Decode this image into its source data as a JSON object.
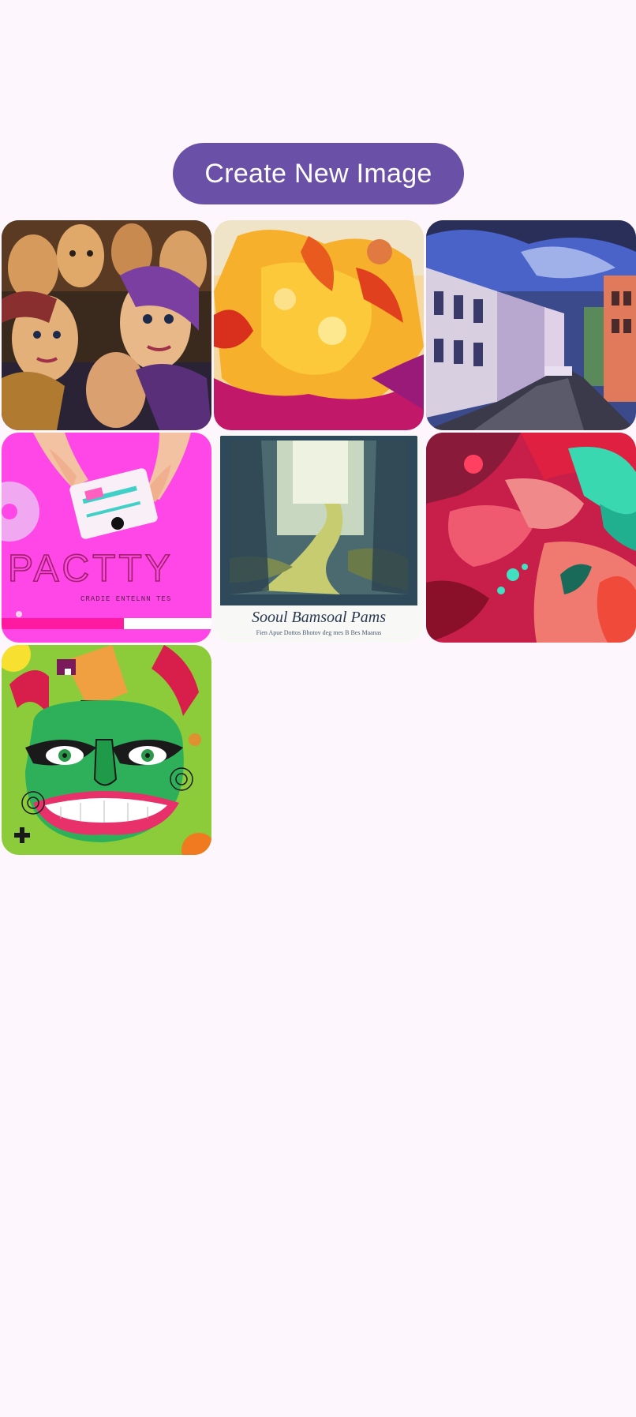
{
  "actions": {
    "create_label": "Create New Image"
  },
  "gallery": {
    "images": [
      {
        "subject": "crowd-of-women-portrait-painting",
        "text": ""
      },
      {
        "subject": "orange-abstract-watercolor",
        "text": ""
      },
      {
        "subject": "city-street-painting",
        "text": ""
      },
      {
        "subject": "party-cassette-poster",
        "text": "PACTTY",
        "subtext": "CRADIE ENTELNN TES"
      },
      {
        "subject": "forest-path-watercolor",
        "text": "Sooul Bamsoal Pams",
        "subtext": "Fien Apue Dottos Bhotov deg mes B Bes Maanas"
      },
      {
        "subject": "red-teal-abstract-splash",
        "text": ""
      },
      {
        "subject": "green-face-cartoon-illustration",
        "text": ""
      }
    ]
  },
  "colors": {
    "background": "#fdf6fc",
    "accent": "#6a50a7"
  }
}
